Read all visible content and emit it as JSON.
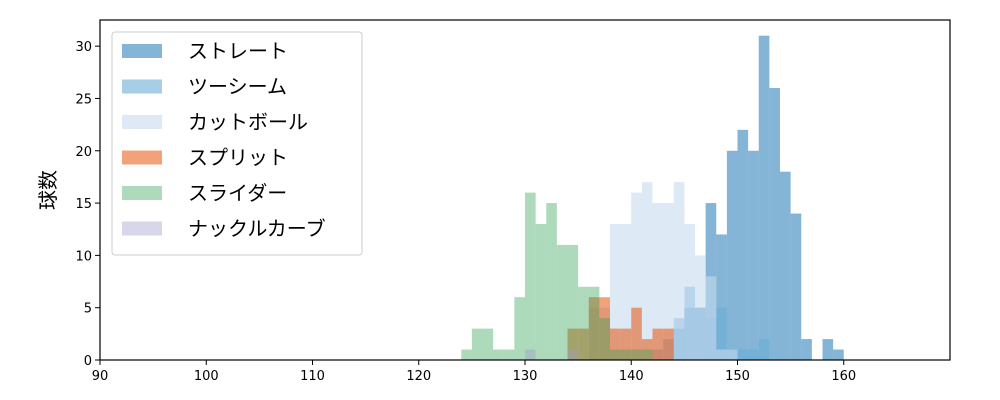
{
  "chart_data": {
    "type": "histogram",
    "title": "",
    "xlabel": "",
    "ylabel": "球数",
    "xlim": [
      90,
      170
    ],
    "ylim": [
      0,
      32.5
    ],
    "xticks": [
      90,
      100,
      110,
      120,
      130,
      140,
      150,
      160
    ],
    "yticks": [
      0,
      5,
      10,
      15,
      20,
      25,
      30
    ],
    "bin_width": 1,
    "legend_position": "upper-left",
    "grid": false,
    "series": [
      {
        "name": "ストレート",
        "color": "#1f77b4",
        "opacity": 0.55,
        "bins": [
          [
            142,
            1
          ],
          [
            143,
            2
          ],
          [
            144,
            3
          ],
          [
            145,
            5
          ],
          [
            146,
            5
          ],
          [
            147,
            15
          ],
          [
            148,
            12
          ],
          [
            149,
            20
          ],
          [
            150,
            22
          ],
          [
            151,
            20
          ],
          [
            152,
            31
          ],
          [
            153,
            26
          ],
          [
            154,
            18
          ],
          [
            155,
            14
          ],
          [
            156,
            2
          ],
          [
            157,
            0
          ],
          [
            158,
            2
          ],
          [
            159,
            1
          ]
        ]
      },
      {
        "name": "ツーシーム",
        "color": "#6baed6",
        "opacity": 0.6,
        "bins": [
          [
            144,
            4
          ],
          [
            145,
            7
          ],
          [
            146,
            5
          ],
          [
            147,
            4
          ],
          [
            148,
            5
          ],
          [
            149,
            1
          ],
          [
            150,
            1
          ],
          [
            151,
            1
          ],
          [
            152,
            2
          ]
        ]
      },
      {
        "name": "カットボール",
        "color": "#c6dbef",
        "opacity": 0.6,
        "bins": [
          [
            136,
            5
          ],
          [
            137,
            5
          ],
          [
            138,
            13
          ],
          [
            139,
            13
          ],
          [
            140,
            16
          ],
          [
            141,
            17
          ],
          [
            142,
            15
          ],
          [
            143,
            15
          ],
          [
            144,
            17
          ],
          [
            145,
            13
          ],
          [
            146,
            10
          ],
          [
            147,
            8
          ],
          [
            148,
            1
          ],
          [
            149,
            1
          ]
        ]
      },
      {
        "name": "スプリット",
        "color": "#e6550d",
        "opacity": 0.55,
        "bins": [
          [
            134,
            3
          ],
          [
            135,
            3
          ],
          [
            136,
            6
          ],
          [
            137,
            6
          ],
          [
            138,
            3
          ],
          [
            139,
            3
          ],
          [
            140,
            5
          ],
          [
            141,
            2
          ],
          [
            142,
            3
          ],
          [
            143,
            3
          ]
        ]
      },
      {
        "name": "スライダー",
        "color": "#31a354",
        "opacity": 0.4,
        "bins": [
          [
            124,
            1
          ],
          [
            125,
            3
          ],
          [
            126,
            3
          ],
          [
            127,
            1
          ],
          [
            128,
            1
          ],
          [
            129,
            6
          ],
          [
            130,
            16
          ],
          [
            131,
            13
          ],
          [
            132,
            15
          ],
          [
            133,
            11
          ],
          [
            134,
            11
          ],
          [
            135,
            7
          ],
          [
            136,
            7
          ],
          [
            137,
            4
          ],
          [
            138,
            1
          ],
          [
            139,
            1
          ],
          [
            140,
            1
          ],
          [
            141,
            1
          ]
        ]
      },
      {
        "name": "ナックルカーブ",
        "color": "#9e9ac8",
        "opacity": 0.4,
        "bins": [
          [
            130,
            1
          ],
          [
            134,
            1
          ]
        ]
      }
    ]
  }
}
